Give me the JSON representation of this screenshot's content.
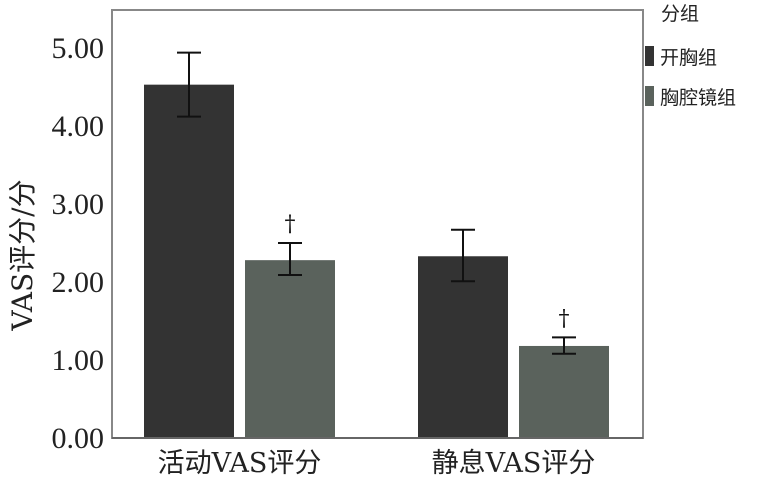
{
  "chart_data": {
    "type": "bar",
    "title": "",
    "xlabel": "",
    "ylabel": "VAS评分/分",
    "ylim": [
      0,
      5.5
    ],
    "yticks": [
      "0.00",
      "1.00",
      "2.00",
      "3.00",
      "4.00",
      "5.00"
    ],
    "categories": [
      "活动VAS评分",
      "静息VAS评分"
    ],
    "legend_title": "分组",
    "legend_position": "top-right-outside",
    "grid": false,
    "series": [
      {
        "name": "开胸组",
        "color": "#333333",
        "values": [
          4.53,
          2.33
        ],
        "err_low": [
          4.12,
          2.01
        ],
        "err_high": [
          4.94,
          2.67
        ],
        "annotations": [
          "",
          ""
        ]
      },
      {
        "name": "胸腔镜组",
        "color": "#5a625c",
        "values": [
          2.28,
          1.18
        ],
        "err_low": [
          2.09,
          1.08
        ],
        "err_high": [
          2.5,
          1.29
        ],
        "annotations": [
          "†",
          "†"
        ]
      }
    ]
  }
}
